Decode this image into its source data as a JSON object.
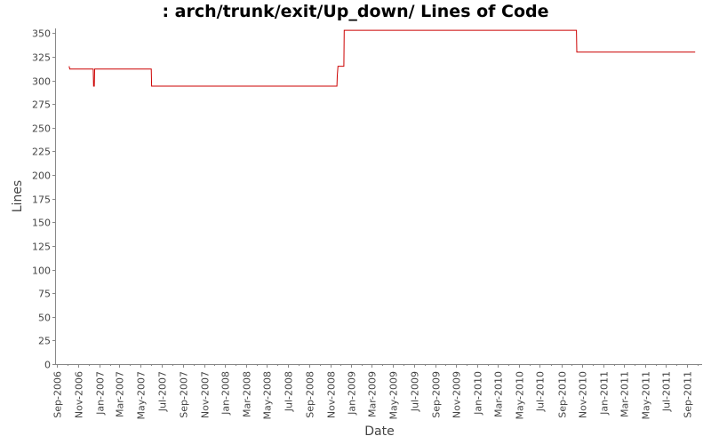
{
  "chart_data": {
    "type": "line",
    "title": ": arch/trunk/exit/Up_down/ Lines of Code",
    "xlabel": "Date",
    "ylabel": "Lines",
    "xlim": [
      "2006-08-29",
      "2011-10-14"
    ],
    "ylim": [
      0,
      355
    ],
    "y_ticks": [
      0,
      25,
      50,
      75,
      100,
      125,
      150,
      175,
      200,
      225,
      250,
      275,
      300,
      325,
      350
    ],
    "x_ticks": [
      {
        "date": "2006-09-01",
        "label": "Sep-2006"
      },
      {
        "date": "2006-11-01",
        "label": "Nov-2006"
      },
      {
        "date": "2007-01-01",
        "label": "Jan-2007"
      },
      {
        "date": "2007-03-01",
        "label": "Mar-2007"
      },
      {
        "date": "2007-05-01",
        "label": "May-2007"
      },
      {
        "date": "2007-07-01",
        "label": "Jul-2007"
      },
      {
        "date": "2007-09-01",
        "label": "Sep-2007"
      },
      {
        "date": "2007-11-01",
        "label": "Nov-2007"
      },
      {
        "date": "2008-01-01",
        "label": "Jan-2008"
      },
      {
        "date": "2008-03-01",
        "label": "Mar-2008"
      },
      {
        "date": "2008-05-01",
        "label": "May-2008"
      },
      {
        "date": "2008-07-01",
        "label": "Jul-2008"
      },
      {
        "date": "2008-09-01",
        "label": "Sep-2008"
      },
      {
        "date": "2008-11-01",
        "label": "Nov-2008"
      },
      {
        "date": "2009-01-01",
        "label": "Jan-2009"
      },
      {
        "date": "2009-03-01",
        "label": "Mar-2009"
      },
      {
        "date": "2009-05-01",
        "label": "May-2009"
      },
      {
        "date": "2009-07-01",
        "label": "Jul-2009"
      },
      {
        "date": "2009-09-01",
        "label": "Sep-2009"
      },
      {
        "date": "2009-11-01",
        "label": "Nov-2009"
      },
      {
        "date": "2010-01-01",
        "label": "Jan-2010"
      },
      {
        "date": "2010-03-01",
        "label": "Mar-2010"
      },
      {
        "date": "2010-05-01",
        "label": "May-2010"
      },
      {
        "date": "2010-07-01",
        "label": "Jul-2010"
      },
      {
        "date": "2010-09-01",
        "label": "Sep-2010"
      },
      {
        "date": "2010-11-01",
        "label": "Nov-2010"
      },
      {
        "date": "2011-01-01",
        "label": "Jan-2011"
      },
      {
        "date": "2011-03-01",
        "label": "Mar-2011"
      },
      {
        "date": "2011-05-01",
        "label": "May-2011"
      },
      {
        "date": "2011-07-01",
        "label": "Jul-2011"
      },
      {
        "date": "2011-09-01",
        "label": "Sep-2011"
      }
    ],
    "grid": false,
    "series": [
      {
        "color": "#cc0000",
        "points": [
          {
            "x": "2006-10-06",
            "y": 315
          },
          {
            "x": "2006-10-08",
            "y": 312
          },
          {
            "x": "2006-12-15",
            "y": 312
          },
          {
            "x": "2006-12-16",
            "y": 294
          },
          {
            "x": "2006-12-18",
            "y": 294
          },
          {
            "x": "2006-12-19",
            "y": 312
          },
          {
            "x": "2007-06-01",
            "y": 312
          },
          {
            "x": "2007-06-02",
            "y": 294
          },
          {
            "x": "2008-11-20",
            "y": 294
          },
          {
            "x": "2008-11-21",
            "y": 305
          },
          {
            "x": "2008-11-23",
            "y": 315
          },
          {
            "x": "2008-12-10",
            "y": 315
          },
          {
            "x": "2008-12-11",
            "y": 353
          },
          {
            "x": "2010-10-15",
            "y": 353
          },
          {
            "x": "2010-10-16",
            "y": 330
          },
          {
            "x": "2011-09-24",
            "y": 330
          }
        ]
      }
    ]
  }
}
